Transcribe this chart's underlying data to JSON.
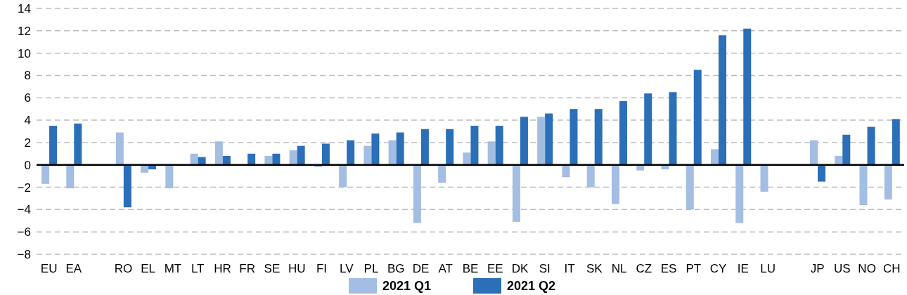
{
  "chart_data": {
    "type": "bar",
    "categories": [
      "EU",
      "EA",
      null,
      "RO",
      "EL",
      "MT",
      "LT",
      "HR",
      "FR",
      "SE",
      "HU",
      "FI",
      "LV",
      "PL",
      "BG",
      "DE",
      "AT",
      "BE",
      "EE",
      "DK",
      "SI",
      "IT",
      "SK",
      "NL",
      "CZ",
      "ES",
      "PT",
      "CY",
      "IE",
      "LU",
      null,
      "JP",
      "US",
      "NO",
      "CH"
    ],
    "series": [
      {
        "name": "2021 Q1",
        "color": "#a3bde3",
        "values": [
          -1.7,
          -2.1,
          null,
          2.9,
          -0.7,
          -2.1,
          1.0,
          2.1,
          0,
          0.8,
          1.3,
          -0.2,
          -2.0,
          1.7,
          2.2,
          -5.2,
          -1.6,
          1.1,
          2.1,
          -5.1,
          4.3,
          -1.1,
          -2.0,
          -3.5,
          -0.5,
          -0.4,
          -4.0,
          1.4,
          -5.2,
          -2.4,
          null,
          2.2,
          0.8,
          -3.6,
          -3.1
        ]
      },
      {
        "name": "2021 Q2",
        "color": "#2a6fb8",
        "values": [
          3.5,
          3.7,
          null,
          -3.8,
          -0.4,
          0,
          0.7,
          0.8,
          1.0,
          1.0,
          1.7,
          1.9,
          2.2,
          2.8,
          2.9,
          3.2,
          3.2,
          3.5,
          3.5,
          4.3,
          4.6,
          5.0,
          5.0,
          5.7,
          6.4,
          6.5,
          8.5,
          11.6,
          12.2,
          0,
          null,
          -1.5,
          2.7,
          3.4,
          4.1
        ]
      }
    ],
    "ylim": [
      -8,
      14
    ],
    "yticks": [
      {
        "value": -8,
        "label": "−8"
      },
      {
        "value": -6,
        "label": "−6"
      },
      {
        "value": -4,
        "label": "−4"
      },
      {
        "value": -2,
        "label": "−2"
      },
      0,
      2,
      4,
      6,
      8,
      10,
      12,
      14
    ],
    "grid": "y",
    "legend": "bottom"
  }
}
